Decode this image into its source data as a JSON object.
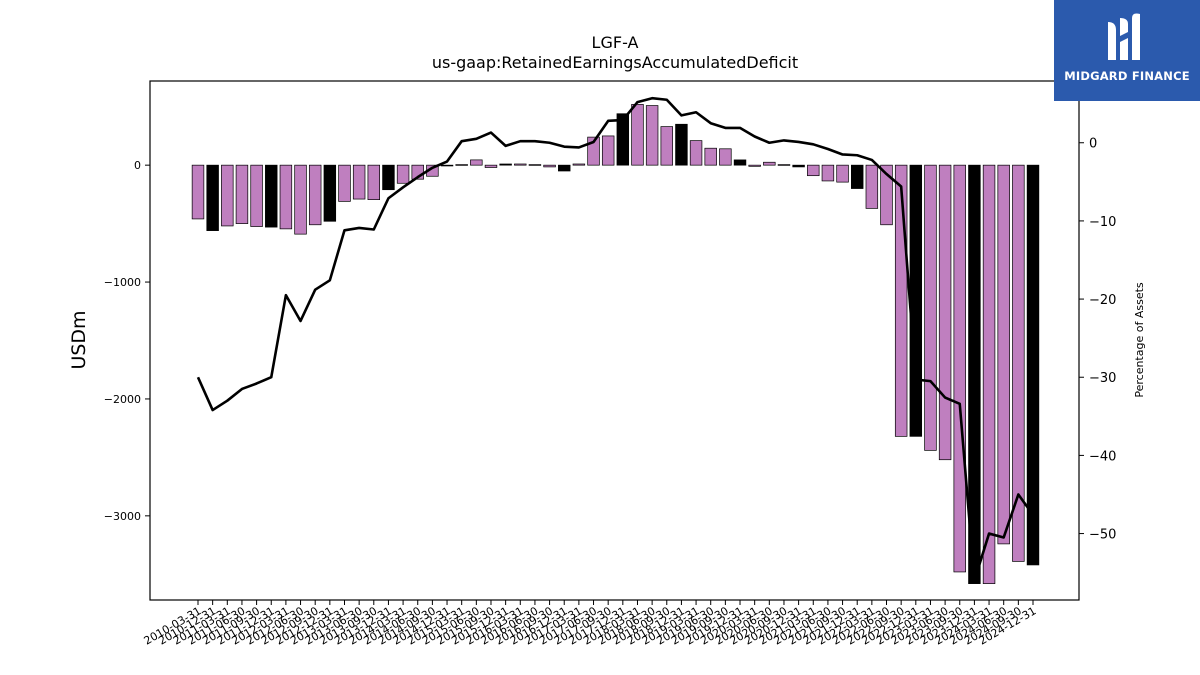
{
  "logo": {
    "text": "MIDGARD FINANCE",
    "bg_color": "#2b5aad"
  },
  "chart_data": {
    "type": "bar",
    "title": "LGF-A",
    "subtitle": "us-gaap:RetainedEarningsAccumulatedDeficit",
    "ylabel": "USDm",
    "y2label": "Percentage of Assets",
    "ylim": [
      -3720,
      720
    ],
    "y2lim": [
      -58.5,
      7.9
    ],
    "yticks": [
      0,
      -1000,
      -2000,
      -3000
    ],
    "y2ticks": [
      0,
      -10,
      -20,
      -30,
      -40,
      -50
    ],
    "bar_color": "#bf7fbf",
    "q4_bar_color": "#000000",
    "line_color": "#000000",
    "categories": [
      "2010-03-31",
      "2010-12-31",
      "2011-03-31",
      "2011-06-30",
      "2011-09-30",
      "2011-12-31",
      "2012-03-31",
      "2012-06-30",
      "2012-09-30",
      "2012-12-31",
      "2013-03-31",
      "2013-06-30",
      "2013-09-30",
      "2013-12-31",
      "2014-03-31",
      "2014-06-30",
      "2014-09-30",
      "2014-12-31",
      "2015-03-31",
      "2015-06-30",
      "2015-09-30",
      "2015-12-31",
      "2016-03-31",
      "2016-06-30",
      "2016-09-30",
      "2016-12-31",
      "2017-03-31",
      "2017-06-30",
      "2017-09-30",
      "2017-12-31",
      "2018-03-31",
      "2018-06-30",
      "2018-09-30",
      "2018-12-31",
      "2019-03-31",
      "2019-06-30",
      "2019-09-30",
      "2019-12-31",
      "2020-03-31",
      "2020-06-30",
      "2020-09-30",
      "2020-12-31",
      "2021-03-31",
      "2021-06-30",
      "2021-09-30",
      "2021-12-31",
      "2022-03-31",
      "2022-06-30",
      "2022-09-30",
      "2022-12-31",
      "2023-03-31",
      "2023-06-30",
      "2023-09-30",
      "2023-12-31",
      "2024-03-31",
      "2024-06-30",
      "2024-09-30",
      "2024-12-31"
    ],
    "q4": [
      false,
      true,
      false,
      false,
      false,
      true,
      false,
      false,
      false,
      true,
      false,
      false,
      false,
      true,
      false,
      false,
      false,
      true,
      false,
      false,
      false,
      true,
      false,
      false,
      false,
      true,
      false,
      false,
      false,
      true,
      false,
      false,
      false,
      true,
      false,
      false,
      false,
      true,
      false,
      false,
      false,
      true,
      false,
      false,
      false,
      true,
      false,
      false,
      false,
      true,
      false,
      false,
      false,
      true,
      false,
      false,
      false,
      true
    ],
    "series": [
      {
        "values": [
          -460,
          -560,
          -520,
          -500,
          -525,
          -530,
          -545,
          -590,
          -510,
          -480,
          -310,
          -290,
          -295,
          -210,
          -155,
          -120,
          -95,
          -5,
          5,
          45,
          -20,
          10,
          10,
          5,
          -15,
          -50,
          10,
          240,
          250,
          440,
          520,
          510,
          330,
          350,
          210,
          145,
          140,
          45,
          -10,
          25,
          5,
          -15,
          -90,
          -135,
          -145,
          -200,
          -370,
          -510,
          -2320,
          -2320,
          -2440,
          -2520,
          -3480,
          -3580,
          -3580,
          -3240,
          -3390,
          -3420
        ]
      },
      {
        "values": [
          -30.0,
          -34.2,
          -33.0,
          -31.5,
          -30.8,
          -30.0,
          -19.5,
          -22.8,
          -18.8,
          -17.6,
          -11.2,
          -10.9,
          -11.1,
          -7.1,
          -5.7,
          -4.4,
          -3.2,
          -2.4,
          0.2,
          0.5,
          1.3,
          -0.4,
          0.2,
          0.2,
          0.0,
          -0.5,
          -0.6,
          0.1,
          2.8,
          2.9,
          5.2,
          5.7,
          5.5,
          3.5,
          3.9,
          2.5,
          1.9,
          1.9,
          0.8,
          0.0,
          0.3,
          0.1,
          -0.2,
          -0.8,
          -1.5,
          -1.6,
          -2.2,
          -4.0,
          -5.6,
          -30.3,
          -30.5,
          -32.6,
          -33.4,
          -56.0,
          -50.0,
          -50.5,
          -45.0,
          -47.6
        ]
      }
    ],
    "legend": "none",
    "grid": false
  }
}
